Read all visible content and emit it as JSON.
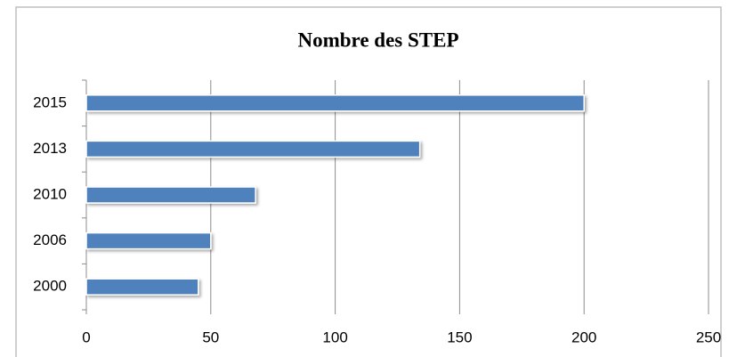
{
  "chart_data": {
    "type": "bar",
    "orientation": "horizontal",
    "title": "Nombre des STEP",
    "categories": [
      "2000",
      "2006",
      "2010",
      "2013",
      "2015"
    ],
    "values": [
      45,
      50,
      68,
      134,
      200
    ],
    "color": "#4f81bd",
    "xlim": [
      0,
      250
    ],
    "xticks": [
      0,
      50,
      100,
      150,
      200,
      250
    ],
    "grid": true
  }
}
